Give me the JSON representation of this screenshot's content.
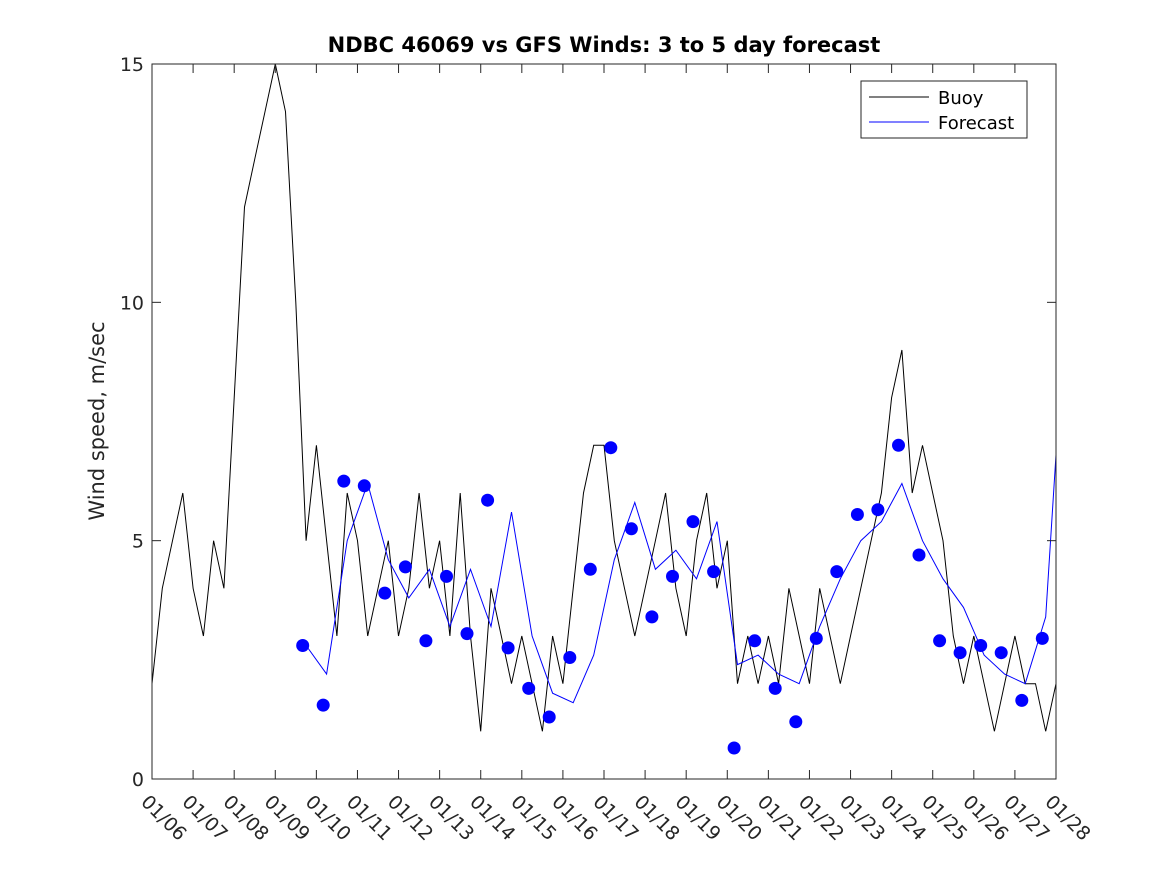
{
  "chart_data": {
    "type": "line",
    "title": "NDBC 46069 vs GFS Winds: 3 to 5 day forecast",
    "xlabel": "",
    "ylabel": "Wind speed, m/sec",
    "xlim": [
      "01/06",
      "01/28"
    ],
    "ylim": [
      0,
      15
    ],
    "yticks": [
      "0",
      "5",
      "10",
      "15"
    ],
    "xticks": [
      "01/06",
      "01/07",
      "01/08",
      "01/09",
      "01/10",
      "01/11",
      "01/12",
      "01/13",
      "01/14",
      "01/15",
      "01/16",
      "01/17",
      "01/18",
      "01/19",
      "01/20",
      "01/21",
      "01/22",
      "01/23",
      "01/24",
      "01/25",
      "01/26",
      "01/27",
      "01/28"
    ],
    "grid": false,
    "legend": {
      "position": "top-right",
      "entries": [
        "Buoy",
        "Forecast"
      ]
    },
    "colors": {
      "buoy": "#000000",
      "forecast": "#0000ff",
      "markers": "#0000ff"
    },
    "series": [
      {
        "name": "Buoy",
        "x": [
          "01/06",
          "01/06 06:00",
          "01/06 12:00",
          "01/06 18:00",
          "01/07",
          "01/07 06:00",
          "01/07 12:00",
          "01/07 18:00",
          "01/08",
          "01/08 06:00",
          "01/08 12:00",
          "01/08 18:00",
          "01/09",
          "01/09 06:00",
          "01/09 12:00",
          "01/09 18:00",
          "01/10",
          "01/10 06:00",
          "01/10 12:00",
          "01/10 18:00",
          "01/11",
          "01/11 06:00",
          "01/11 12:00",
          "01/11 18:00",
          "01/12",
          "01/12 06:00",
          "01/12 12:00",
          "01/12 18:00",
          "01/13",
          "01/13 06:00",
          "01/13 12:00",
          "01/13 18:00",
          "01/14",
          "01/14 06:00",
          "01/14 12:00",
          "01/14 18:00",
          "01/15",
          "01/15 06:00",
          "01/15 12:00",
          "01/15 18:00",
          "01/16",
          "01/16 06:00",
          "01/16 12:00",
          "01/16 18:00",
          "01/17",
          "01/17 06:00",
          "01/17 12:00",
          "01/17 18:00",
          "01/18",
          "01/18 06:00",
          "01/18 12:00",
          "01/18 18:00",
          "01/19",
          "01/19 06:00",
          "01/19 12:00",
          "01/19 18:00",
          "01/20",
          "01/20 06:00",
          "01/20 12:00",
          "01/20 18:00",
          "01/21",
          "01/21 06:00",
          "01/21 12:00",
          "01/21 18:00",
          "01/22",
          "01/22 06:00",
          "01/22 12:00",
          "01/22 18:00",
          "01/23",
          "01/23 06:00",
          "01/23 12:00",
          "01/23 18:00",
          "01/24",
          "01/24 06:00",
          "01/24 12:00",
          "01/24 18:00",
          "01/25",
          "01/25 06:00",
          "01/25 12:00",
          "01/25 18:00",
          "01/26",
          "01/26 06:00",
          "01/26 12:00",
          "01/26 18:00",
          "01/27",
          "01/27 06:00",
          "01/27 12:00",
          "01/27 18:00",
          "01/28"
        ],
        "y": [
          2,
          4,
          5,
          6,
          4,
          3,
          5,
          4,
          8,
          12,
          13,
          14,
          15,
          14,
          10,
          5,
          7,
          5,
          3,
          6,
          5,
          3,
          4,
          5,
          3,
          4,
          6,
          4,
          5,
          3,
          6,
          3,
          1,
          4,
          3,
          2,
          3,
          2,
          1,
          3,
          2,
          4,
          6,
          7,
          7,
          5,
          4,
          3,
          4,
          5,
          6,
          4,
          3,
          5,
          6,
          4,
          5,
          2,
          3,
          2,
          3,
          2,
          4,
          3,
          2,
          4,
          3,
          2,
          3,
          4,
          5,
          6,
          8,
          9,
          6,
          7,
          6,
          5,
          3,
          2,
          3,
          2,
          1,
          2,
          3,
          2,
          2,
          1,
          2
        ]
      },
      {
        "name": "Forecast",
        "x": [
          "01/09 18:00",
          "01/10 06:00",
          "01/10 18:00",
          "01/11 06:00",
          "01/11 18:00",
          "01/12 06:00",
          "01/12 18:00",
          "01/13 06:00",
          "01/13 18:00",
          "01/14 06:00",
          "01/14 18:00",
          "01/15 06:00",
          "01/15 18:00",
          "01/16 06:00",
          "01/16 18:00",
          "01/17 06:00",
          "01/17 18:00",
          "01/18 06:00",
          "01/18 18:00",
          "01/19 06:00",
          "01/19 18:00",
          "01/20 06:00",
          "01/20 18:00",
          "01/21 06:00",
          "01/21 18:00",
          "01/22 06:00",
          "01/22 18:00",
          "01/23 06:00",
          "01/23 18:00",
          "01/24 06:00",
          "01/24 18:00",
          "01/25 06:00",
          "01/25 18:00",
          "01/26 06:00",
          "01/26 18:00",
          "01/27 06:00",
          "01/27 18:00",
          "01/28"
        ],
        "y": [
          2.8,
          2.2,
          5.0,
          6.2,
          4.6,
          3.8,
          4.4,
          3.2,
          4.4,
          3.2,
          5.6,
          3.0,
          1.8,
          1.6,
          2.6,
          4.6,
          5.8,
          4.4,
          4.8,
          4.2,
          5.4,
          2.4,
          2.6,
          2.2,
          2.0,
          3.2,
          4.2,
          5.0,
          5.4,
          6.2,
          5.0,
          4.2,
          3.6,
          2.6,
          2.2,
          2.0,
          3.4,
          6.8
        ]
      }
    ],
    "markers": {
      "x": [
        "01/09 16:00",
        "01/10 04:00",
        "01/10 16:00",
        "01/11 04:00",
        "01/11 16:00",
        "01/12 04:00",
        "01/12 16:00",
        "01/13 04:00",
        "01/13 16:00",
        "01/14 04:00",
        "01/14 16:00",
        "01/15 04:00",
        "01/15 16:00",
        "01/16 04:00",
        "01/16 16:00",
        "01/17 04:00",
        "01/17 16:00",
        "01/18 04:00",
        "01/18 16:00",
        "01/19 04:00",
        "01/19 16:00",
        "01/20 04:00",
        "01/20 16:00",
        "01/21 04:00",
        "01/21 16:00",
        "01/22 04:00",
        "01/22 16:00",
        "01/23 04:00",
        "01/23 16:00",
        "01/24 04:00",
        "01/24 16:00",
        "01/25 04:00",
        "01/25 16:00",
        "01/26 04:00",
        "01/26 16:00",
        "01/27 04:00",
        "01/27 16:00"
      ],
      "y": [
        2.8,
        1.55,
        6.25,
        6.15,
        3.9,
        4.45,
        2.9,
        4.25,
        3.05,
        5.85,
        2.75,
        1.9,
        1.3,
        2.55,
        4.4,
        6.95,
        5.25,
        3.4,
        4.25,
        5.4,
        4.35,
        0.65,
        2.9,
        1.9,
        1.2,
        2.95,
        4.35,
        5.55,
        5.65,
        7.0,
        4.7,
        2.9,
        2.65,
        2.8,
        2.65,
        1.65,
        2.95
      ]
    }
  }
}
